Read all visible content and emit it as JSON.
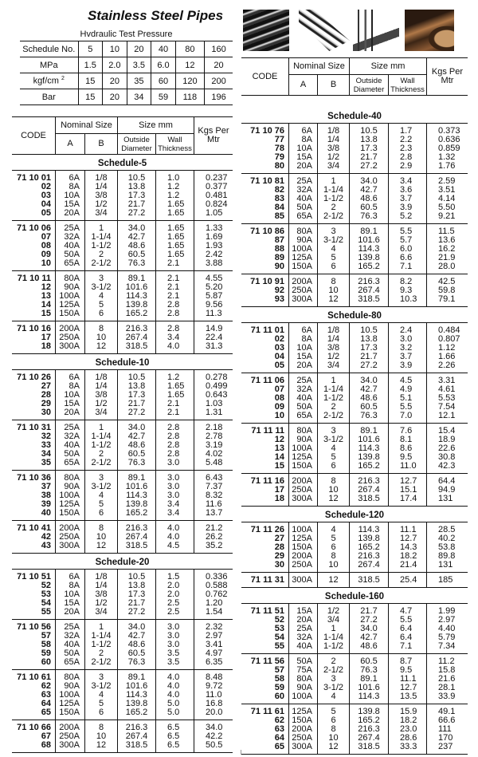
{
  "title": "Stainless Steel Pipes",
  "pressure_table": {
    "caption": "Hvdraulic Test Pressure",
    "rows": [
      [
        "Schedule No.",
        "5",
        "10",
        "20",
        "40",
        "80",
        "160"
      ],
      [
        "MPa",
        "1.5",
        "2.0",
        "3.5",
        "6.0",
        "12",
        "20"
      ],
      [
        "kgf/cm",
        "15",
        "20",
        "35",
        "60",
        "120",
        "200"
      ],
      [
        "Bar",
        "15",
        "20",
        "34",
        "59",
        "118",
        "196"
      ]
    ],
    "kgf_superscript": "2"
  },
  "photos": [
    "pipe-bundle-photo",
    "pipe-rods-photo",
    "pipe-pieces-photo",
    "large-pipe-photo"
  ],
  "header": {
    "code": "CODE",
    "nominal_size": "Nominal Size",
    "a": "A",
    "b": "B",
    "size_mm": "Size mm",
    "outside_diameter": "Outside Diameter",
    "wall_thickness": "Wall Thickness",
    "kgs_per_mtr": "Kgs Per Mtr"
  },
  "left_schedules": [
    {
      "title": "Schedule-5",
      "groups": [
        [
          [
            "71 10 01",
            "6A",
            "1/8",
            "10.5",
            "1.0",
            "0.237"
          ],
          [
            "02",
            "8A",
            "1/4",
            "13.8",
            "1.2",
            "0.377"
          ],
          [
            "03",
            "10A",
            "3/8",
            "17.3",
            "1.2",
            "0.481"
          ],
          [
            "04",
            "15A",
            "1/2",
            "21.7",
            "1.65",
            "0.824"
          ],
          [
            "05",
            "20A",
            "3/4",
            "27.2",
            "1.65",
            "1.05"
          ]
        ],
        [
          [
            "71 10 06",
            "25A",
            "1",
            "34.0",
            "1.65",
            "1.33"
          ],
          [
            "07",
            "32A",
            "1-1/4",
            "42.7",
            "1.65",
            "1.69"
          ],
          [
            "08",
            "40A",
            "1-1/2",
            "48.6",
            "1.65",
            "1.93"
          ],
          [
            "09",
            "50A",
            "2",
            "60.5",
            "1.65",
            "2.42"
          ],
          [
            "10",
            "65A",
            "2-1/2",
            "76.3",
            "2.1",
            "3.88"
          ]
        ],
        [
          [
            "71 10 11",
            "80A",
            "3",
            "89.1",
            "2.1",
            "4.55"
          ],
          [
            "12",
            "90A",
            "3-1/2",
            "101.6",
            "2.1",
            "5.20"
          ],
          [
            "13",
            "100A",
            "4",
            "114.3",
            "2.1",
            "5.87"
          ],
          [
            "14",
            "125A",
            "5",
            "139.8",
            "2.8",
            "9.56"
          ],
          [
            "15",
            "150A",
            "6",
            "165.2",
            "2.8",
            "11.3"
          ]
        ],
        [
          [
            "71 10 16",
            "200A",
            "8",
            "216.3",
            "2.8",
            "14.9"
          ],
          [
            "17",
            "250A",
            "10",
            "267.4",
            "3.4",
            "22.4"
          ],
          [
            "18",
            "300A",
            "12",
            "318.5",
            "4.0",
            "31.3"
          ]
        ]
      ]
    },
    {
      "title": "Schedule-10",
      "groups": [
        [
          [
            "71 10 26",
            "6A",
            "1/8",
            "10.5",
            "1.2",
            "0.278"
          ],
          [
            "27",
            "8A",
            "1/4",
            "13.8",
            "1.65",
            "0.499"
          ],
          [
            "28",
            "10A",
            "3/8",
            "17.3",
            "1.65",
            "0.643"
          ],
          [
            "29",
            "15A",
            "1/2",
            "21.7",
            "2.1",
            "1.03"
          ],
          [
            "30",
            "20A",
            "3/4",
            "27.2",
            "2.1",
            "1.31"
          ]
        ],
        [
          [
            "71 10 31",
            "25A",
            "1",
            "34.0",
            "2.8",
            "2.18"
          ],
          [
            "32",
            "32A",
            "1-1/4",
            "42.7",
            "2.8",
            "2.78"
          ],
          [
            "33",
            "40A",
            "1-1/2",
            "48.6",
            "2.8",
            "3.19"
          ],
          [
            "34",
            "50A",
            "2",
            "60.5",
            "2.8",
            "4.02"
          ],
          [
            "35",
            "65A",
            "2-1/2",
            "76.3",
            "3.0",
            "5.48"
          ]
        ],
        [
          [
            "71 10 36",
            "80A",
            "3",
            "89.1",
            "3.0",
            "6.43"
          ],
          [
            "37",
            "90A",
            "3-1/2",
            "101.6",
            "3.0",
            "7.37"
          ],
          [
            "38",
            "100A",
            "4",
            "114.3",
            "3.0",
            "8.32"
          ],
          [
            "39",
            "125A",
            "5",
            "139.8",
            "3.4",
            "11.6"
          ],
          [
            "40",
            "150A",
            "6",
            "165.2",
            "3.4",
            "13.7"
          ]
        ],
        [
          [
            "71 10 41",
            "200A",
            "8",
            "216.3",
            "4.0",
            "21.2"
          ],
          [
            "42",
            "250A",
            "10",
            "267.4",
            "4.0",
            "26.2"
          ],
          [
            "43",
            "300A",
            "12",
            "318.5",
            "4.5",
            "35.2"
          ]
        ]
      ]
    },
    {
      "title": "Schedule-20",
      "groups": [
        [
          [
            "71 10 51",
            "6A",
            "1/8",
            "10.5",
            "1.5",
            "0.336"
          ],
          [
            "52",
            "8A",
            "1/4",
            "13.8",
            "2.0",
            "0.588"
          ],
          [
            "53",
            "10A",
            "3/8",
            "17.3",
            "2.0",
            "0.762"
          ],
          [
            "54",
            "15A",
            "1/2",
            "21.7",
            "2.5",
            "1.20"
          ],
          [
            "55",
            "20A",
            "3/4",
            "27.2",
            "2.5",
            "1.54"
          ]
        ],
        [
          [
            "71 10 56",
            "25A",
            "1",
            "34.0",
            "3.0",
            "2.32"
          ],
          [
            "57",
            "32A",
            "1-1/4",
            "42.7",
            "3.0",
            "2.97"
          ],
          [
            "58",
            "40A",
            "1-1/2",
            "48.6",
            "3.0",
            "3.41"
          ],
          [
            "59",
            "50A",
            "2",
            "60.5",
            "3.5",
            "4.97"
          ],
          [
            "60",
            "65A",
            "2-1/2",
            "76.3",
            "3.5",
            "6.35"
          ]
        ],
        [
          [
            "71 10 61",
            "80A",
            "3",
            "89.1",
            "4.0",
            "8.48"
          ],
          [
            "62",
            "90A",
            "3-1/2",
            "101.6",
            "4.0",
            "9.72"
          ],
          [
            "63",
            "100A",
            "4",
            "114.3",
            "4.0",
            "11.0"
          ],
          [
            "64",
            "125A",
            "5",
            "139.8",
            "5.0",
            "16.8"
          ],
          [
            "65",
            "150A",
            "6",
            "165.2",
            "5.0",
            "20.0"
          ]
        ],
        [
          [
            "71 10 66",
            "200A",
            "8",
            "216.3",
            "6.5",
            "34.0"
          ],
          [
            "67",
            "250A",
            "10",
            "267.4",
            "6.5",
            "42.2"
          ],
          [
            "68",
            "300A",
            "12",
            "318.5",
            "6.5",
            "50.5"
          ]
        ]
      ]
    }
  ],
  "right_schedules": [
    {
      "title": "Schedule-40",
      "groups": [
        [
          [
            "71 10 76",
            "6A",
            "1/8",
            "10.5",
            "1.7",
            "0.373"
          ],
          [
            "77",
            "8A",
            "1/4",
            "13.8",
            "2.2",
            "0.636"
          ],
          [
            "78",
            "10A",
            "3/8",
            "17.3",
            "2.3",
            "0.859"
          ],
          [
            "79",
            "15A",
            "1/2",
            "21.7",
            "2.8",
            "1.32"
          ],
          [
            "80",
            "20A",
            "3/4",
            "27.2",
            "2.9",
            "1.76"
          ]
        ],
        [
          [
            "71 10 81",
            "25A",
            "1",
            "34.0",
            "3.4",
            "2.59"
          ],
          [
            "82",
            "32A",
            "1-1/4",
            "42.7",
            "3.6",
            "3.51"
          ],
          [
            "83",
            "40A",
            "1-1/2",
            "48.6",
            "3.7",
            "4.14"
          ],
          [
            "84",
            "50A",
            "2",
            "60.5",
            "3.9",
            "5.50"
          ],
          [
            "85",
            "65A",
            "2-1/2",
            "76.3",
            "5.2",
            "9.21"
          ]
        ],
        [
          [
            "71 10 86",
            "80A",
            "3",
            "89.1",
            "5.5",
            "11.5"
          ],
          [
            "87",
            "90A",
            "3-1/2",
            "101.6",
            "5.7",
            "13.6"
          ],
          [
            "88",
            "100A",
            "4",
            "114.3",
            "6.0",
            "16.2"
          ],
          [
            "89",
            "125A",
            "5",
            "139.8",
            "6.6",
            "21.9"
          ],
          [
            "90",
            "150A",
            "6",
            "165.2",
            "7.1",
            "28.0"
          ]
        ],
        [
          [
            "71 10 91",
            "200A",
            "8",
            "216.3",
            "8.2",
            "42.5"
          ],
          [
            "92",
            "250A",
            "10",
            "267.4",
            "9.3",
            "59.8"
          ],
          [
            "93",
            "300A",
            "12",
            "318.5",
            "10.3",
            "79.1"
          ]
        ]
      ]
    },
    {
      "title": "Schedule-80",
      "groups": [
        [
          [
            "71 11 01",
            "6A",
            "1/8",
            "10.5",
            "2.4",
            "0.484"
          ],
          [
            "02",
            "8A",
            "1/4",
            "13.8",
            "3.0",
            "0.807"
          ],
          [
            "03",
            "10A",
            "3/8",
            "17.3",
            "3.2",
            "1.12"
          ],
          [
            "04",
            "15A",
            "1/2",
            "21.7",
            "3.7",
            "1.66"
          ],
          [
            "05",
            "20A",
            "3/4",
            "27.2",
            "3.9",
            "2.26"
          ]
        ],
        [
          [
            "71 11 06",
            "25A",
            "1",
            "34.0",
            "4.5",
            "3.31"
          ],
          [
            "07",
            "32A",
            "1-1/4",
            "42.7",
            "4.9",
            "4.61"
          ],
          [
            "08",
            "40A",
            "1-1/2",
            "48.6",
            "5.1",
            "5.53"
          ],
          [
            "09",
            "50A",
            "2",
            "60.5",
            "5.5",
            "7.54"
          ],
          [
            "10",
            "65A",
            "2-1/2",
            "76.3",
            "7.0",
            "12.1"
          ]
        ],
        [
          [
            "71 11 11",
            "80A",
            "3",
            "89.1",
            "7.6",
            "15.4"
          ],
          [
            "12",
            "90A",
            "3-1/2",
            "101.6",
            "8.1",
            "18.9"
          ],
          [
            "13",
            "100A",
            "4",
            "114.3",
            "8.6",
            "22.6"
          ],
          [
            "14",
            "125A",
            "5",
            "139.8",
            "9.5",
            "30.8"
          ],
          [
            "15",
            "150A",
            "6",
            "165.2",
            "11.0",
            "42.3"
          ]
        ],
        [
          [
            "71 11 16",
            "200A",
            "8",
            "216.3",
            "12.7",
            "64.4"
          ],
          [
            "17",
            "250A",
            "10",
            "267.4",
            "15.1",
            "94.9"
          ],
          [
            "18",
            "300A",
            "12",
            "318.5",
            "17.4",
            "131"
          ]
        ]
      ]
    },
    {
      "title": "Schedule-120",
      "groups": [
        [
          [
            "71 11 26",
            "100A",
            "4",
            "114.3",
            "11.1",
            "28.5"
          ],
          [
            "27",
            "125A",
            "5",
            "139.8",
            "12.7",
            "40.2"
          ],
          [
            "28",
            "150A",
            "6",
            "165.2",
            "14.3",
            "53.8"
          ],
          [
            "29",
            "200A",
            "8",
            "216.3",
            "18.2",
            "89.8"
          ],
          [
            "30",
            "250A",
            "10",
            "267.4",
            "21.4",
            "131"
          ]
        ],
        [
          [
            "71 11 31",
            "300A",
            "12",
            "318.5",
            "25.4",
            "185"
          ]
        ]
      ]
    },
    {
      "title": "Schedule-160",
      "groups": [
        [
          [
            "71 11 51",
            "15A",
            "1/2",
            "21.7",
            "4.7",
            "1.99"
          ],
          [
            "52",
            "20A",
            "3/4",
            "27.2",
            "5.5",
            "2.97"
          ],
          [
            "53",
            "25A",
            "1",
            "34.0",
            "6.4",
            "4.40"
          ],
          [
            "54",
            "32A",
            "1-1/4",
            "42.7",
            "6.4",
            "5.79"
          ],
          [
            "55",
            "40A",
            "1-1/2",
            "48.6",
            "7.1",
            "7.34"
          ]
        ],
        [
          [
            "71 11 56",
            "50A",
            "2",
            "60.5",
            "8.7",
            "11.2"
          ],
          [
            "57",
            "75A",
            "2-1/2",
            "76.3",
            "9.5",
            "15.8"
          ],
          [
            "58",
            "80A",
            "3",
            "89.1",
            "11.1",
            "21.6"
          ],
          [
            "59",
            "90A",
            "3-1/2",
            "101.6",
            "12.7",
            "28.1"
          ],
          [
            "60",
            "100A",
            "4",
            "114.3",
            "13.5",
            "33.9"
          ]
        ],
        [
          [
            "71 11 61",
            "125A",
            "5",
            "139.8",
            "15.9",
            "49.1"
          ],
          [
            "62",
            "150A",
            "6",
            "165.2",
            "18.2",
            "66.6"
          ],
          [
            "63",
            "200A",
            "8",
            "216.3",
            "23.0",
            "111"
          ],
          [
            "64",
            "250A",
            "10",
            "267.4",
            "28.6",
            "170"
          ],
          [
            "65",
            "300A",
            "12",
            "318.5",
            "33.3",
            "237"
          ]
        ]
      ]
    }
  ]
}
